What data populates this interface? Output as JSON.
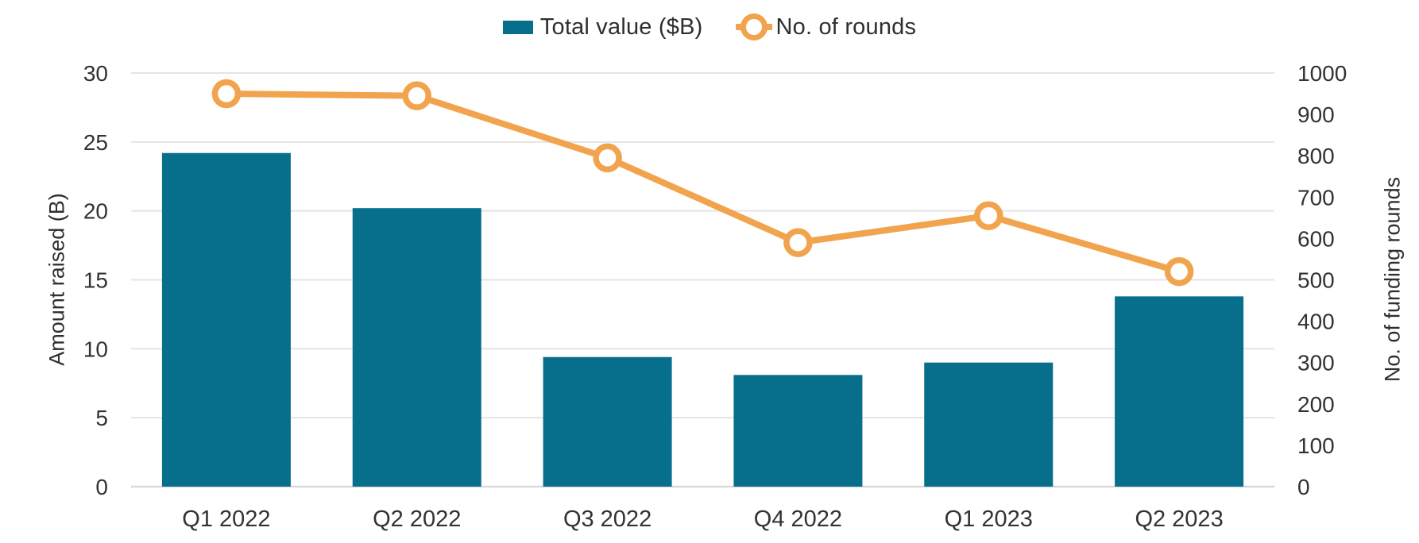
{
  "chart_data": {
    "type": "combo-bar-line",
    "categories": [
      "Q1 2022",
      "Q2 2022",
      "Q3 2022",
      "Q4 2022",
      "Q1 2023",
      "Q2 2023"
    ],
    "series": [
      {
        "name": "Total value ($B)",
        "type": "bar",
        "axis": "left",
        "values": [
          24.2,
          20.2,
          9.4,
          8.1,
          9.0,
          13.8
        ]
      },
      {
        "name": "No. of rounds",
        "type": "line",
        "axis": "right",
        "values": [
          950,
          945,
          795,
          590,
          655,
          520
        ]
      }
    ],
    "left_axis": {
      "title": "Amount raised (B)",
      "min": 0,
      "max": 30,
      "tick_step": 5
    },
    "right_axis": {
      "title": "No. of funding rounds",
      "min": 0,
      "max": 1000,
      "tick_step": 100
    },
    "grid": "horizontal, at left-axis ticks only",
    "legend_position": "top-center",
    "title": ""
  },
  "legend": {
    "items": [
      {
        "label": "Total value ($B)",
        "marker": "bar-swatch"
      },
      {
        "label": "No. of rounds",
        "marker": "line-ring"
      }
    ]
  },
  "axes": {
    "left_title": "Amount raised (B)",
    "right_title": "No. of funding rounds"
  },
  "colors": {
    "bar": "#076F8C",
    "line": "#F1A44D",
    "grid": "#E4E4E4",
    "axis_line": "#D9D9D9",
    "text": "#323232"
  }
}
